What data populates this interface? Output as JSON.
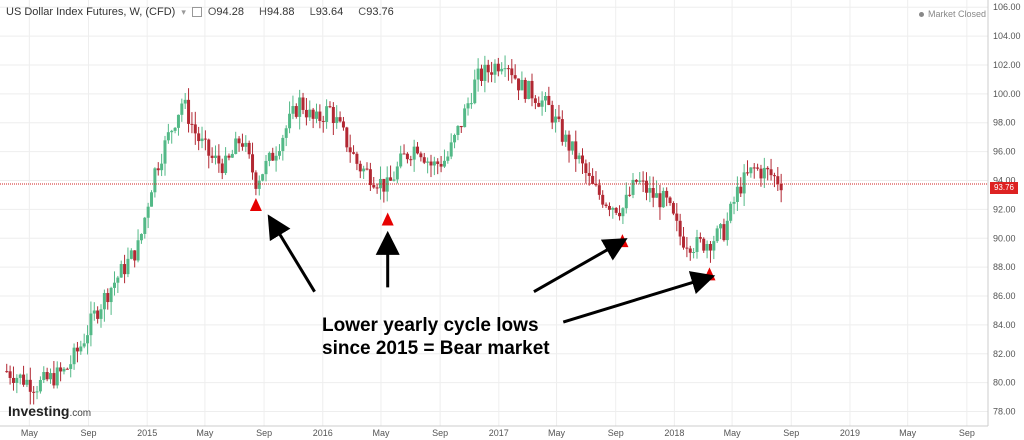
{
  "header": {
    "title": "US Dollar Index Futures, W, (CFD)",
    "ohlc": {
      "open_label": "O",
      "open": "94.28",
      "high_label": "H",
      "high": "94.88",
      "low_label": "L",
      "low": "93.64",
      "close_label": "C",
      "close": "93.76"
    }
  },
  "status": {
    "text": "Market Closed"
  },
  "logo": {
    "text": "Investing",
    "suffix": ".com"
  },
  "annotation": {
    "line1": "Lower yearly cycle lows",
    "line2": "since 2015 = Bear market"
  },
  "colors": {
    "up": "#53b987",
    "down": "#b22833",
    "grid": "#eeeeee",
    "price_line": "#d22222",
    "marker": "#e60000"
  },
  "chart_data": {
    "type": "candlestick",
    "timeframe": "W",
    "ylim": [
      77,
      106.5
    ],
    "y_ticks": [
      78,
      80,
      82,
      84,
      86,
      88,
      90,
      92,
      94,
      96,
      98,
      100,
      102,
      104,
      106
    ],
    "y_tick_labels": [
      "78.00",
      "80.00",
      "82.00",
      "84.00",
      "86.00",
      "88.00",
      "90.00",
      "92.00",
      "94.00",
      "96.00",
      "98.00",
      "100.00",
      "102.00",
      "104.00",
      "106.00"
    ],
    "x_tick_labels": [
      "May",
      "Sep",
      "2015",
      "May",
      "Sep",
      "2016",
      "May",
      "Sep",
      "2017",
      "May",
      "Sep",
      "2018",
      "May",
      "Sep",
      "2019",
      "May",
      "Sep"
    ],
    "last_price": 93.76,
    "last_price_label": "93.76",
    "path": [
      [
        "2014-03",
        80.8
      ],
      [
        "2014-05",
        79.8
      ],
      [
        "2014-06",
        80.3
      ],
      [
        "2014-07",
        80.8
      ],
      [
        "2014-08",
        82.5
      ],
      [
        "2014-09",
        84.8
      ],
      [
        "2014-10",
        86.5
      ],
      [
        "2014-11",
        88.0
      ],
      [
        "2014-12",
        89.5
      ],
      [
        "2015-01",
        94.5
      ],
      [
        "2015-03",
        99.5
      ],
      [
        "2015-04",
        97.0
      ],
      [
        "2015-05",
        95.5
      ],
      [
        "2015-06",
        95.0
      ],
      [
        "2015-07",
        97.0
      ],
      [
        "2015-08",
        94.0
      ],
      [
        "2015-09",
        95.5
      ],
      [
        "2015-10",
        97.5
      ],
      [
        "2015-11",
        99.5
      ],
      [
        "2015-12",
        98.0
      ],
      [
        "2016-01",
        99.0
      ],
      [
        "2016-02",
        97.0
      ],
      [
        "2016-03",
        95.0
      ],
      [
        "2016-05",
        93.5
      ],
      [
        "2016-06",
        95.5
      ],
      [
        "2016-07",
        96.5
      ],
      [
        "2016-08",
        95.0
      ],
      [
        "2016-09",
        95.5
      ],
      [
        "2016-10",
        98.0
      ],
      [
        "2016-11",
        101.0
      ],
      [
        "2017-01",
        102.5
      ],
      [
        "2017-02",
        100.5
      ],
      [
        "2017-03",
        100.0
      ],
      [
        "2017-04",
        99.0
      ],
      [
        "2017-05",
        97.0
      ],
      [
        "2017-06",
        95.5
      ],
      [
        "2017-07",
        93.5
      ],
      [
        "2017-08",
        92.5
      ],
      [
        "2017-09",
        92.0
      ],
      [
        "2017-10",
        94.0
      ],
      [
        "2017-11",
        93.0
      ],
      [
        "2017-12",
        92.5
      ],
      [
        "2018-01",
        90.0
      ],
      [
        "2018-02",
        89.5
      ],
      [
        "2018-03",
        89.8
      ],
      [
        "2018-04",
        90.5
      ],
      [
        "2018-05",
        93.5
      ],
      [
        "2018-06",
        94.8
      ],
      [
        "2018-07",
        94.5
      ],
      [
        "2018-08",
        93.8
      ]
    ],
    "markers": [
      {
        "date": "2015-08",
        "value": 92.3
      },
      {
        "date": "2016-05",
        "value": 91.3
      },
      {
        "date": "2017-09",
        "value": 89.8
      },
      {
        "date": "2018-03",
        "value": 87.5
      }
    ],
    "arrows": [
      {
        "from": [
          "2015-12",
          86.3
        ],
        "to": [
          "2015-09",
          91.3
        ]
      },
      {
        "from": [
          "2016-05",
          86.6
        ],
        "to": [
          "2016-05",
          90.1
        ]
      },
      {
        "from": [
          "2017-03",
          86.3
        ],
        "to": [
          "2017-09",
          89.8
        ]
      },
      {
        "from": [
          "2017-05",
          84.2
        ],
        "to": [
          "2018-03",
          87.3
        ]
      }
    ]
  }
}
